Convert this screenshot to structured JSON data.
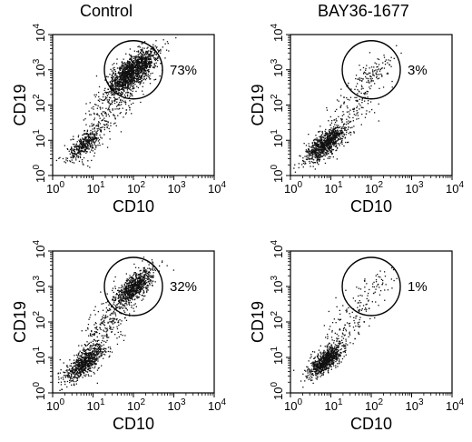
{
  "column_titles": [
    "Control",
    "BAY36-1677"
  ],
  "chart_data": [
    {
      "type": "scatter",
      "column": "Control",
      "xlabel": "CD10",
      "ylabel": "CD19",
      "xscale": "log",
      "yscale": "log",
      "xlim": [
        1,
        10000
      ],
      "ylim": [
        1,
        10000
      ],
      "tick_labels": [
        "10^0",
        "10^1",
        "10^2",
        "10^3",
        "10^4"
      ],
      "gate_percent_label": "73%",
      "gate_center": [
        100,
        1000
      ],
      "populations": [
        {
          "name": "",
          "x_center": 90,
          "y_center": 900,
          "spread_decades": 0.32,
          "count": 1500
        },
        {
          "name": "",
          "x_center": 6,
          "y_center": 8,
          "spread_decades": 0.22,
          "count": 380
        },
        {
          "name": "",
          "x_center": 25,
          "y_center": 60,
          "spread_decades": 0.45,
          "count": 260
        }
      ]
    },
    {
      "type": "scatter",
      "column": "BAY36-1677",
      "xlabel": "CD10",
      "ylabel": "CD19",
      "xscale": "log",
      "yscale": "log",
      "xlim": [
        1,
        10000
      ],
      "ylim": [
        1,
        10000
      ],
      "tick_labels": [
        "10^0",
        "10^1",
        "10^2",
        "10^3",
        "10^4"
      ],
      "gate_percent_label": "3%",
      "gate_center": [
        100,
        1000
      ],
      "populations": [
        {
          "name": "",
          "x_center": 100,
          "y_center": 800,
          "spread_decades": 0.3,
          "count": 90
        },
        {
          "name": "",
          "x_center": 7,
          "y_center": 8,
          "spread_decades": 0.25,
          "count": 850
        },
        {
          "name": "",
          "x_center": 25,
          "y_center": 50,
          "spread_decades": 0.5,
          "count": 200
        }
      ]
    },
    {
      "type": "scatter",
      "column": "Control",
      "xlabel": "CD10",
      "ylabel": "CD19",
      "xscale": "log",
      "yscale": "log",
      "xlim": [
        1,
        10000
      ],
      "ylim": [
        1,
        10000
      ],
      "tick_labels": [
        "10^0",
        "10^1",
        "10^2",
        "10^3",
        "10^4"
      ],
      "gate_percent_label": "32%",
      "gate_center": [
        100,
        1000
      ],
      "populations": [
        {
          "name": "",
          "x_center": 100,
          "y_center": 1000,
          "spread_decades": 0.25,
          "count": 750
        },
        {
          "name": "",
          "x_center": 6,
          "y_center": 7,
          "spread_decades": 0.25,
          "count": 700
        },
        {
          "name": "",
          "x_center": 20,
          "y_center": 80,
          "spread_decades": 0.5,
          "count": 350
        }
      ]
    },
    {
      "type": "scatter",
      "column": "BAY36-1677",
      "xlabel": "CD10",
      "ylabel": "CD19",
      "xscale": "log",
      "yscale": "log",
      "xlim": [
        1,
        10000
      ],
      "ylim": [
        1,
        10000
      ],
      "tick_labels": [
        "10^0",
        "10^1",
        "10^2",
        "10^3",
        "10^4"
      ],
      "gate_percent_label": "1%",
      "gate_center": [
        100,
        1000
      ],
      "populations": [
        {
          "name": "",
          "x_center": 100,
          "y_center": 1000,
          "spread_decades": 0.3,
          "count": 35
        },
        {
          "name": "",
          "x_center": 7,
          "y_center": 8,
          "spread_decades": 0.22,
          "count": 800
        },
        {
          "name": "",
          "x_center": 25,
          "y_center": 80,
          "spread_decades": 0.5,
          "count": 200
        }
      ]
    }
  ]
}
